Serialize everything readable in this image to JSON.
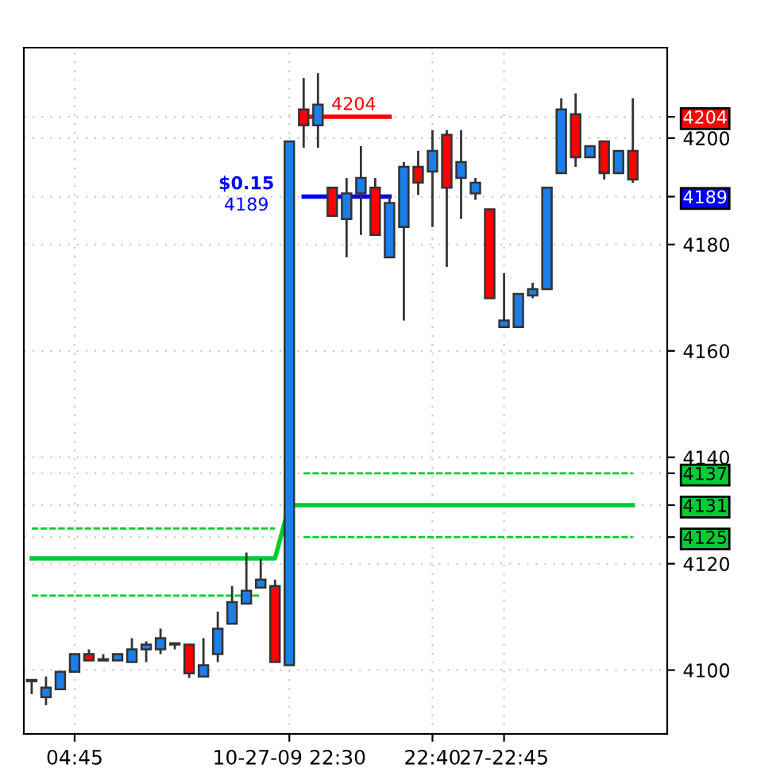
{
  "chart_data": {
    "type": "candlestick",
    "categories": [
      null,
      null,
      null,
      "04:45",
      null,
      null,
      null,
      null,
      null,
      null,
      null,
      null,
      null,
      null,
      null,
      null,
      null,
      null,
      "10-27-09 22:30",
      null,
      null,
      null,
      null,
      null,
      null,
      null,
      null,
      null,
      "22:40",
      null,
      null,
      null,
      null,
      "27-22:45",
      null,
      null,
      null,
      null,
      null,
      null,
      null,
      null,
      null
    ],
    "ohlc": [
      [
        4097.9,
        4097.9,
        4095.5,
        4097.9
      ],
      [
        4094.9,
        4098.8,
        4093.4,
        4096.7
      ],
      [
        4096.4,
        4099.7,
        4096.4,
        4099.7
      ],
      [
        4099.7,
        4103.0,
        4099.7,
        4103.0
      ],
      [
        4103.0,
        4103.9,
        4101.8,
        4101.8
      ],
      [
        4101.8,
        4103.0,
        4101.8,
        4101.8
      ],
      [
        4101.8,
        4103.0,
        4101.8,
        4103.0
      ],
      [
        4101.5,
        4106.0,
        4101.5,
        4103.9
      ],
      [
        4103.9,
        4105.4,
        4101.5,
        4104.8
      ],
      [
        4103.9,
        4107.8,
        4103.0,
        4106.0
      ],
      [
        4104.8,
        4104.8,
        4103.9,
        4104.8
      ],
      [
        4104.8,
        4104.8,
        4098.5,
        4099.4
      ],
      [
        4098.8,
        4106.0,
        4098.8,
        4100.9
      ],
      [
        4103.0,
        4111.0,
        4101.5,
        4107.8
      ],
      [
        4108.7,
        4115.8,
        4108.7,
        4112.8
      ],
      [
        4112.5,
        4122.1,
        4112.5,
        4114.9
      ],
      [
        4115.5,
        4120.9,
        4115.5,
        4117.0
      ],
      [
        4115.8,
        4117.0,
        4101.5,
        4101.5
      ],
      [
        4100.9,
        4199.4,
        4100.9,
        4199.4
      ],
      [
        4205.4,
        4211.3,
        4198.2,
        4202.4
      ],
      [
        4202.4,
        4212.2,
        4198.2,
        4206.3
      ],
      [
        4190.7,
        4190.7,
        4185.4,
        4185.4
      ],
      [
        4184.8,
        4192.5,
        4177.6,
        4189.6
      ],
      [
        4189.6,
        4198.5,
        4181.8,
        4192.5
      ],
      [
        4190.7,
        4192.5,
        4181.8,
        4181.8
      ],
      [
        4177.6,
        4189.0,
        4177.6,
        4187.8
      ],
      [
        4183.3,
        4195.5,
        4165.7,
        4194.6
      ],
      [
        4194.6,
        4197.6,
        4189.3,
        4191.6
      ],
      [
        4193.7,
        4201.5,
        4183.3,
        4197.6
      ],
      [
        4200.6,
        4201.5,
        4175.8,
        4190.7
      ],
      [
        4192.5,
        4201.5,
        4184.8,
        4195.5
      ],
      [
        4189.6,
        4192.5,
        4188.4,
        4191.6
      ],
      [
        4186.6,
        4186.6,
        4169.9,
        4169.9
      ],
      [
        4164.5,
        4174.6,
        4164.5,
        4165.7
      ],
      [
        4164.5,
        4170.7,
        4164.5,
        4170.7
      ],
      [
        4170.4,
        4172.8,
        4169.9,
        4171.6
      ],
      [
        4171.6,
        4190.7,
        4171.6,
        4190.7
      ],
      [
        4193.4,
        4207.5,
        4193.4,
        4205.4
      ],
      [
        4204.5,
        4208.4,
        4194.6,
        4196.4
      ],
      [
        4196.4,
        4198.5,
        4196.4,
        4198.5
      ],
      [
        4199.4,
        4199.4,
        4192.2,
        4193.4
      ],
      [
        4193.4,
        4197.6,
        4193.4,
        4197.6
      ],
      [
        4197.6,
        4207.5,
        4191.6,
        4192.2
      ]
    ],
    "colors": [
      "#1a7fe8",
      "#1a7fe8",
      "#1a7fe8",
      "#1a7fe8",
      "#ff0000",
      "#1a7fe8",
      "#1a7fe8",
      "#1a7fe8",
      "#1a7fe8",
      "#1a7fe8",
      "#1a7fe8",
      "#ff0000",
      "#1a7fe8",
      "#1a7fe8",
      "#1a7fe8",
      "#1a7fe8",
      "#1a7fe8",
      "#ff0000",
      "#1a7fe8",
      "#ff0000",
      "#1a7fe8",
      "#ff0000",
      "#1a7fe8",
      "#1a7fe8",
      "#ff0000",
      "#1a7fe8",
      "#1a7fe8",
      "#ff0000",
      "#1a7fe8",
      "#ff0000",
      "#1a7fe8",
      "#1a7fe8",
      "#ff0000",
      "#1a7fe8",
      "#1a7fe8",
      "#1a7fe8",
      "#1a7fe8",
      "#1a7fe8",
      "#ff0000",
      "#1a7fe8",
      "#ff0000",
      "#1a7fe8",
      "#ff0000"
    ],
    "series": [
      {
        "type": "line",
        "color": "#00cc33",
        "line_style": "solid",
        "values": [
          4121,
          4121,
          4121,
          4121,
          4121,
          4121,
          4121,
          4121,
          4121,
          4121,
          4121,
          4121,
          4121,
          4121,
          4121,
          4121,
          4121,
          4121,
          4131,
          4131,
          4131,
          4131,
          4131,
          4131,
          4131,
          4131,
          4131,
          4131,
          4131,
          4131,
          4131,
          4131,
          4131,
          4131,
          4131,
          4131,
          4131,
          4131,
          4131,
          4131,
          4131,
          4131,
          4131
        ]
      },
      {
        "type": "line",
        "color": "#00cc33",
        "line_style": "dashed",
        "values": [
          4126.6,
          4126.6,
          4126.6,
          4126.6,
          4126.6,
          4126.6,
          4126.6,
          4126.6,
          4126.6,
          4126.6,
          4126.6,
          4126.6,
          4126.6,
          4126.6,
          4126.6,
          4126.6,
          4126.6,
          4126.6,
          null,
          null,
          null,
          null,
          null,
          null,
          null,
          null,
          null,
          null,
          null,
          null,
          null,
          null,
          null,
          null,
          null,
          null,
          null,
          null,
          null,
          null,
          null,
          null,
          null
        ]
      },
      {
        "type": "line",
        "color": "#00cc33",
        "line_style": "dashed",
        "values": [
          4114,
          4114,
          4114,
          4114,
          4114,
          4114,
          4114,
          4114,
          4114,
          4114,
          4114,
          4114,
          4114,
          4114,
          4114,
          4114,
          4114,
          null,
          null,
          null,
          null,
          null,
          null,
          null,
          null,
          null,
          null,
          null,
          null,
          null,
          null,
          null,
          null,
          null,
          null,
          null,
          null,
          null,
          null,
          null,
          null,
          null,
          null
        ]
      },
      {
        "type": "line",
        "color": "#00cc33",
        "line_style": "dashed",
        "values": [
          null,
          null,
          null,
          null,
          null,
          null,
          null,
          null,
          null,
          null,
          null,
          null,
          null,
          null,
          null,
          null,
          null,
          null,
          null,
          4137,
          4137,
          4137,
          4137,
          4137,
          4137,
          4137,
          4137,
          4137,
          4137,
          4137,
          4137,
          4137,
          4137,
          4137,
          4137,
          4137,
          4137,
          4137,
          4137,
          4137,
          4137,
          4137,
          4137
        ]
      },
      {
        "type": "line",
        "color": "#00cc33",
        "line_style": "dashed",
        "values": [
          null,
          null,
          null,
          null,
          null,
          null,
          null,
          null,
          null,
          null,
          null,
          null,
          null,
          null,
          null,
          null,
          null,
          null,
          null,
          4125,
          4125,
          4125,
          4125,
          4125,
          4125,
          4125,
          4125,
          4125,
          4125,
          4125,
          4125,
          4125,
          4125,
          4125,
          4125,
          4125,
          4125,
          4125,
          4125,
          4125,
          4125,
          4125,
          4125
        ]
      },
      {
        "type": "line",
        "color": "#ff0000",
        "line_style": "solid",
        "values": [
          null,
          null,
          null,
          null,
          null,
          null,
          null,
          null,
          null,
          null,
          null,
          null,
          null,
          null,
          null,
          null,
          null,
          null,
          null,
          4204,
          4204,
          4204,
          4204,
          4204,
          4204,
          4204,
          null,
          null,
          null,
          null,
          null,
          null,
          null,
          null,
          null,
          null,
          null,
          null,
          null,
          null,
          null,
          null,
          null
        ]
      },
      {
        "type": "line",
        "color": "#0000ff",
        "line_style": "solid",
        "values": [
          null,
          null,
          null,
          null,
          null,
          null,
          null,
          null,
          null,
          null,
          null,
          null,
          null,
          null,
          null,
          null,
          null,
          null,
          null,
          4189,
          4189,
          4189,
          4189,
          4189,
          4189,
          4189,
          null,
          null,
          null,
          null,
          null,
          null,
          null,
          null,
          null,
          null,
          null,
          null,
          null,
          null,
          null,
          null,
          null
        ]
      }
    ],
    "annotations": [
      {
        "text": "4204",
        "y": 4204
      },
      "$0.15",
      "4189"
    ],
    "ylim": [
      4088,
      4217
    ],
    "yticks": [
      4100,
      4120,
      {
        "value": 4125,
        "label": "4125"
      },
      {
        "value": 4131,
        "label": "4131"
      },
      {
        "value": 4137,
        "label": "4137"
      },
      4140,
      4160,
      4180,
      {
        "value": 4189,
        "label": "4189"
      },
      4200,
      {
        "value": 4204,
        "label": "4204"
      }
    ],
    "grid": true,
    "legend": false
  }
}
